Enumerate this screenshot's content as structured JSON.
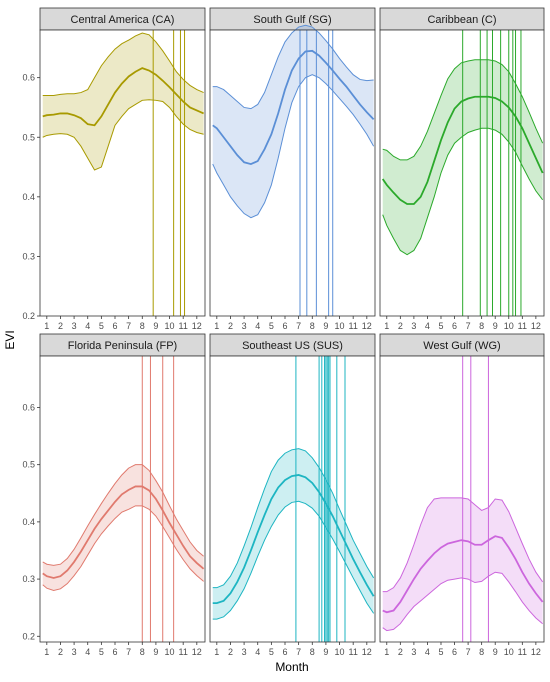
{
  "chart_data": {
    "type": "line",
    "xlabel": "Month",
    "ylabel": "EVI",
    "xlim": [
      0.5,
      12.6
    ],
    "x_ticks": [
      1,
      2,
      3,
      4,
      5,
      6,
      7,
      8,
      9,
      10,
      11,
      12
    ],
    "y_ticks": [
      0.2,
      0.3,
      0.4,
      0.5,
      0.6
    ],
    "grid": false,
    "legend": "none",
    "x": [
      0.7,
      1,
      1.5,
      2,
      2.5,
      3,
      3.5,
      4,
      4.5,
      5,
      5.5,
      6,
      6.5,
      7,
      7.5,
      8,
      8.5,
      9,
      9.5,
      10,
      10.5,
      11,
      11.5,
      12,
      12.5
    ],
    "panels": [
      {
        "name": "Central America (CA)",
        "color": "#a89a00",
        "ylim": [
          0.2,
          0.68
        ],
        "mean": [
          0.535,
          0.537,
          0.538,
          0.54,
          0.54,
          0.537,
          0.532,
          0.522,
          0.52,
          0.535,
          0.555,
          0.575,
          0.59,
          0.602,
          0.61,
          0.616,
          0.612,
          0.605,
          0.595,
          0.584,
          0.572,
          0.56,
          0.55,
          0.545,
          0.54
        ],
        "upper": [
          0.57,
          0.57,
          0.57,
          0.572,
          0.573,
          0.573,
          0.575,
          0.58,
          0.6,
          0.62,
          0.635,
          0.648,
          0.657,
          0.663,
          0.67,
          0.675,
          0.672,
          0.66,
          0.645,
          0.628,
          0.61,
          0.597,
          0.587,
          0.58,
          0.575
        ],
        "lower": [
          0.5,
          0.503,
          0.505,
          0.506,
          0.505,
          0.5,
          0.485,
          0.465,
          0.445,
          0.45,
          0.485,
          0.52,
          0.535,
          0.548,
          0.555,
          0.562,
          0.563,
          0.562,
          0.56,
          0.55,
          0.535,
          0.522,
          0.513,
          0.508,
          0.505
        ],
        "vlines": [
          8.8,
          10.3,
          10.8,
          11.1
        ]
      },
      {
        "name": "South Gulf (SG)",
        "color": "#5b8fd6",
        "ylim": [
          0.2,
          0.68
        ],
        "mean": [
          0.52,
          0.515,
          0.5,
          0.485,
          0.47,
          0.458,
          0.455,
          0.46,
          0.48,
          0.505,
          0.54,
          0.58,
          0.612,
          0.632,
          0.644,
          0.645,
          0.637,
          0.625,
          0.612,
          0.598,
          0.585,
          0.57,
          0.555,
          0.542,
          0.53
        ],
        "upper": [
          0.585,
          0.585,
          0.58,
          0.57,
          0.56,
          0.55,
          0.548,
          0.555,
          0.575,
          0.605,
          0.635,
          0.66,
          0.675,
          0.685,
          0.688,
          0.685,
          0.675,
          0.662,
          0.648,
          0.632,
          0.618,
          0.605,
          0.597,
          0.595,
          0.596
        ],
        "lower": [
          0.455,
          0.44,
          0.42,
          0.4,
          0.385,
          0.372,
          0.365,
          0.37,
          0.39,
          0.42,
          0.465,
          0.515,
          0.558,
          0.585,
          0.6,
          0.605,
          0.6,
          0.59,
          0.578,
          0.565,
          0.552,
          0.538,
          0.522,
          0.505,
          0.485
        ],
        "vlines": [
          7.1,
          7.6,
          8.3,
          9.2,
          9.5
        ]
      },
      {
        "name": "Caribbean (C)",
        "color": "#2ba92b",
        "ylim": [
          0.2,
          0.68
        ],
        "mean": [
          0.43,
          0.42,
          0.407,
          0.395,
          0.388,
          0.388,
          0.4,
          0.425,
          0.46,
          0.495,
          0.525,
          0.548,
          0.56,
          0.565,
          0.568,
          0.568,
          0.568,
          0.566,
          0.56,
          0.55,
          0.535,
          0.515,
          0.49,
          0.465,
          0.44
        ],
        "upper": [
          0.48,
          0.478,
          0.468,
          0.462,
          0.462,
          0.468,
          0.485,
          0.51,
          0.54,
          0.57,
          0.598,
          0.615,
          0.625,
          0.628,
          0.63,
          0.63,
          0.63,
          0.628,
          0.622,
          0.61,
          0.59,
          0.568,
          0.542,
          0.515,
          0.49
        ],
        "lower": [
          0.37,
          0.352,
          0.33,
          0.31,
          0.303,
          0.31,
          0.33,
          0.365,
          0.4,
          0.44,
          0.47,
          0.49,
          0.5,
          0.508,
          0.512,
          0.515,
          0.515,
          0.512,
          0.505,
          0.492,
          0.475,
          0.452,
          0.43,
          0.41,
          0.395
        ],
        "vlines": [
          6.6,
          7.9,
          8.4,
          8.8,
          9.4,
          10.0,
          10.3,
          10.5,
          10.9
        ]
      },
      {
        "name": "Florida Peninsula (FP)",
        "color": "#e07a6e",
        "ylim": [
          0.19,
          0.69
        ],
        "mean": [
          0.31,
          0.305,
          0.302,
          0.305,
          0.315,
          0.33,
          0.348,
          0.368,
          0.388,
          0.405,
          0.42,
          0.435,
          0.448,
          0.456,
          0.462,
          0.462,
          0.455,
          0.44,
          0.42,
          0.398,
          0.378,
          0.358,
          0.34,
          0.328,
          0.318
        ],
        "upper": [
          0.33,
          0.326,
          0.324,
          0.326,
          0.336,
          0.352,
          0.372,
          0.393,
          0.413,
          0.432,
          0.45,
          0.467,
          0.482,
          0.494,
          0.5,
          0.5,
          0.49,
          0.472,
          0.452,
          0.428,
          0.405,
          0.385,
          0.365,
          0.35,
          0.34
        ],
        "lower": [
          0.29,
          0.284,
          0.28,
          0.283,
          0.292,
          0.306,
          0.322,
          0.342,
          0.362,
          0.379,
          0.393,
          0.406,
          0.417,
          0.422,
          0.428,
          0.428,
          0.422,
          0.41,
          0.392,
          0.372,
          0.352,
          0.334,
          0.318,
          0.306,
          0.296
        ],
        "vlines": [
          8.0,
          8.6,
          9.5,
          10.3
        ]
      },
      {
        "name": "Southeast US (SUS)",
        "color": "#1db5c2",
        "ylim": [
          0.19,
          0.69
        ],
        "mean": [
          0.258,
          0.258,
          0.262,
          0.275,
          0.295,
          0.32,
          0.35,
          0.382,
          0.412,
          0.44,
          0.46,
          0.473,
          0.48,
          0.482,
          0.478,
          0.468,
          0.452,
          0.432,
          0.41,
          0.385,
          0.36,
          0.335,
          0.312,
          0.29,
          0.27
        ],
        "upper": [
          0.285,
          0.285,
          0.29,
          0.305,
          0.328,
          0.358,
          0.39,
          0.425,
          0.458,
          0.488,
          0.508,
          0.52,
          0.526,
          0.528,
          0.524,
          0.512,
          0.495,
          0.474,
          0.45,
          0.422,
          0.395,
          0.368,
          0.345,
          0.322,
          0.302
        ],
        "lower": [
          0.23,
          0.23,
          0.234,
          0.245,
          0.262,
          0.283,
          0.31,
          0.34,
          0.368,
          0.392,
          0.412,
          0.426,
          0.434,
          0.436,
          0.432,
          0.424,
          0.41,
          0.39,
          0.37,
          0.348,
          0.325,
          0.302,
          0.28,
          0.258,
          0.24
        ],
        "vlines": [
          6.8,
          8.5,
          8.7,
          8.9,
          9.0,
          9.1,
          9.2,
          9.3,
          9.8,
          10.4
        ]
      },
      {
        "name": "West Gulf (WG)",
        "color": "#cc66dd",
        "ylim": [
          0.19,
          0.69
        ],
        "mean": [
          0.245,
          0.242,
          0.245,
          0.26,
          0.28,
          0.3,
          0.318,
          0.332,
          0.345,
          0.355,
          0.362,
          0.365,
          0.368,
          0.366,
          0.36,
          0.36,
          0.368,
          0.375,
          0.372,
          0.355,
          0.335,
          0.312,
          0.292,
          0.275,
          0.26
        ],
        "upper": [
          0.278,
          0.278,
          0.285,
          0.302,
          0.328,
          0.36,
          0.395,
          0.425,
          0.44,
          0.442,
          0.442,
          0.442,
          0.442,
          0.44,
          0.43,
          0.42,
          0.425,
          0.44,
          0.438,
          0.418,
          0.39,
          0.362,
          0.335,
          0.312,
          0.295
        ],
        "lower": [
          0.215,
          0.21,
          0.212,
          0.222,
          0.238,
          0.252,
          0.262,
          0.272,
          0.282,
          0.292,
          0.298,
          0.3,
          0.302,
          0.3,
          0.294,
          0.296,
          0.305,
          0.312,
          0.31,
          0.295,
          0.278,
          0.26,
          0.245,
          0.232,
          0.222
        ],
        "vlines": [
          6.6,
          7.2,
          8.5
        ]
      }
    ]
  }
}
